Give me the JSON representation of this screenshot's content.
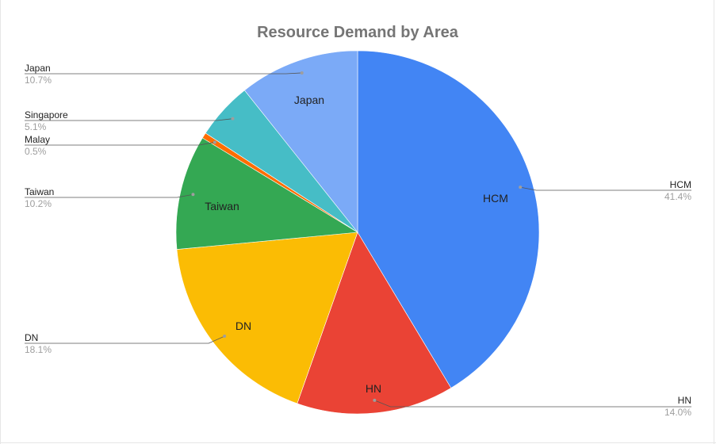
{
  "chart_data": {
    "type": "pie",
    "title": "Resource Demand by Area",
    "slices": [
      {
        "name": "HCM",
        "value": 41.4,
        "percent_label": "41.4%",
        "color": "#4285f4",
        "show_inner_label": true
      },
      {
        "name": "HN",
        "value": 14.0,
        "percent_label": "14.0%",
        "color": "#ea4335",
        "show_inner_label": true
      },
      {
        "name": "DN",
        "value": 18.1,
        "percent_label": "18.1%",
        "color": "#fbbc04",
        "show_inner_label": true
      },
      {
        "name": "Taiwan",
        "value": 10.2,
        "percent_label": "10.2%",
        "color": "#34a853",
        "show_inner_label": true
      },
      {
        "name": "Malay",
        "value": 0.5,
        "percent_label": "0.5%",
        "color": "#ff6d01",
        "show_inner_label": false
      },
      {
        "name": "Singapore",
        "value": 5.1,
        "percent_label": "5.1%",
        "color": "#46bdc6",
        "show_inner_label": false
      },
      {
        "name": "Japan",
        "value": 10.7,
        "percent_label": "10.7%",
        "color": "#7baaf7",
        "show_inner_label": true
      }
    ],
    "start_angle_deg": 0,
    "direction": "clockwise",
    "legend": "leader-line labels"
  }
}
